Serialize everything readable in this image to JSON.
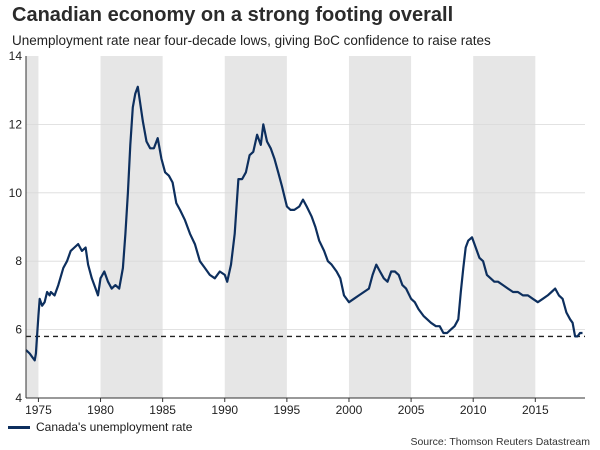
{
  "title": "Canadian economy on a strong footing overall",
  "subtitle": "Unemployment rate near four-decade lows, giving BoC confidence to raise rates",
  "source": "Source: Thomson Reuters Datastream",
  "colors": {
    "series": "#0d2f5e",
    "shade": "#e6e6e6",
    "reference": "#222222"
  },
  "chart_data": {
    "type": "line",
    "title": "Canadian economy on a strong footing overall",
    "xlabel": "",
    "ylabel": "",
    "xlim": [
      1974.0,
      2019.0
    ],
    "ylim": [
      4,
      14
    ],
    "x_ticks": [
      1975,
      1980,
      1985,
      1990,
      1995,
      2000,
      2005,
      2010,
      2015
    ],
    "x_tick_labels": [
      "1975",
      "1980",
      "1985",
      "1990",
      "1995",
      "2000",
      "2005",
      "2010",
      "2015"
    ],
    "y_ticks": [
      4,
      6,
      8,
      10,
      12,
      14
    ],
    "y_tick_labels": [
      "4",
      "6",
      "8",
      "10",
      "12",
      "14"
    ],
    "shaded_periods": [
      [
        1974.0,
        1975.0
      ],
      [
        1980.0,
        1985.0
      ],
      [
        1990.0,
        1995.0
      ],
      [
        2000.0,
        2005.0
      ],
      [
        2010.0,
        2015.0
      ]
    ],
    "reference_line": {
      "value": 5.8,
      "style": "dashed"
    },
    "legend": "bottom-left",
    "series": [
      {
        "name": "Canada's unemployment rate",
        "x": [
          1974.0,
          1974.3,
          1974.5,
          1974.7,
          1974.8,
          1975.0,
          1975.1,
          1975.3,
          1975.5,
          1975.7,
          1975.9,
          1976.0,
          1976.3,
          1976.6,
          1977.0,
          1977.3,
          1977.6,
          1977.9,
          1978.2,
          1978.5,
          1978.8,
          1979.0,
          1979.3,
          1979.6,
          1979.8,
          1980.0,
          1980.3,
          1980.6,
          1980.9,
          1981.2,
          1981.5,
          1981.8,
          1982.0,
          1982.2,
          1982.4,
          1982.6,
          1982.8,
          1983.0,
          1983.2,
          1983.4,
          1983.7,
          1984.0,
          1984.3,
          1984.6,
          1984.9,
          1985.2,
          1985.5,
          1985.8,
          1986.1,
          1986.4,
          1986.8,
          1987.2,
          1987.6,
          1988.0,
          1988.4,
          1988.8,
          1989.2,
          1989.6,
          1990.0,
          1990.2,
          1990.5,
          1990.8,
          1991.1,
          1991.4,
          1991.7,
          1992.0,
          1992.3,
          1992.6,
          1992.9,
          1993.1,
          1993.4,
          1993.7,
          1994.0,
          1994.3,
          1994.6,
          1995.0,
          1995.3,
          1995.6,
          1996.0,
          1996.3,
          1996.6,
          1997.0,
          1997.3,
          1997.6,
          1998.0,
          1998.3,
          1998.6,
          1999.0,
          1999.3,
          1999.6,
          2000.0,
          2000.4,
          2000.8,
          2001.2,
          2001.6,
          2001.9,
          2002.2,
          2002.5,
          2002.8,
          2003.1,
          2003.4,
          2003.7,
          2004.0,
          2004.3,
          2004.6,
          2005.0,
          2005.3,
          2005.6,
          2006.0,
          2006.3,
          2006.6,
          2007.0,
          2007.3,
          2007.6,
          2007.9,
          2008.2,
          2008.5,
          2008.8,
          2009.0,
          2009.2,
          2009.4,
          2009.6,
          2009.9,
          2010.2,
          2010.5,
          2010.8,
          2011.1,
          2011.4,
          2011.7,
          2012.0,
          2012.4,
          2012.8,
          2013.2,
          2013.6,
          2014.0,
          2014.4,
          2014.8,
          2015.2,
          2015.6,
          2016.0,
          2016.3,
          2016.6,
          2016.9,
          2017.2,
          2017.5,
          2017.8,
          2018.0,
          2018.2,
          2018.4,
          2018.6,
          2018.8
        ],
        "values": [
          5.4,
          5.3,
          5.2,
          5.1,
          5.3,
          6.4,
          6.9,
          6.7,
          6.8,
          7.1,
          7.0,
          7.1,
          7.0,
          7.3,
          7.8,
          8.0,
          8.3,
          8.4,
          8.5,
          8.3,
          8.4,
          7.9,
          7.5,
          7.2,
          7.0,
          7.5,
          7.7,
          7.4,
          7.2,
          7.3,
          7.2,
          7.8,
          8.8,
          10.0,
          11.4,
          12.5,
          12.9,
          13.1,
          12.6,
          12.1,
          11.5,
          11.3,
          11.3,
          11.6,
          11.0,
          10.6,
          10.5,
          10.3,
          9.7,
          9.5,
          9.2,
          8.8,
          8.5,
          8.0,
          7.8,
          7.6,
          7.5,
          7.7,
          7.6,
          7.4,
          7.9,
          8.8,
          10.4,
          10.4,
          10.6,
          11.1,
          11.2,
          11.7,
          11.4,
          12.0,
          11.5,
          11.3,
          11.0,
          10.6,
          10.2,
          9.6,
          9.5,
          9.5,
          9.6,
          9.8,
          9.6,
          9.3,
          9.0,
          8.6,
          8.3,
          8.0,
          7.9,
          7.7,
          7.5,
          7.0,
          6.8,
          6.9,
          7.0,
          7.1,
          7.2,
          7.6,
          7.9,
          7.7,
          7.5,
          7.4,
          7.7,
          7.7,
          7.6,
          7.3,
          7.2,
          6.9,
          6.8,
          6.6,
          6.4,
          6.3,
          6.2,
          6.1,
          6.1,
          5.9,
          5.9,
          6.0,
          6.1,
          6.3,
          7.1,
          7.8,
          8.4,
          8.6,
          8.7,
          8.4,
          8.1,
          8.0,
          7.6,
          7.5,
          7.4,
          7.4,
          7.3,
          7.2,
          7.1,
          7.1,
          7.0,
          7.0,
          6.9,
          6.8,
          6.9,
          7.0,
          7.1,
          7.2,
          7.0,
          6.9,
          6.5,
          6.3,
          6.2,
          5.8,
          5.8,
          5.9,
          5.9
        ]
      }
    ]
  }
}
